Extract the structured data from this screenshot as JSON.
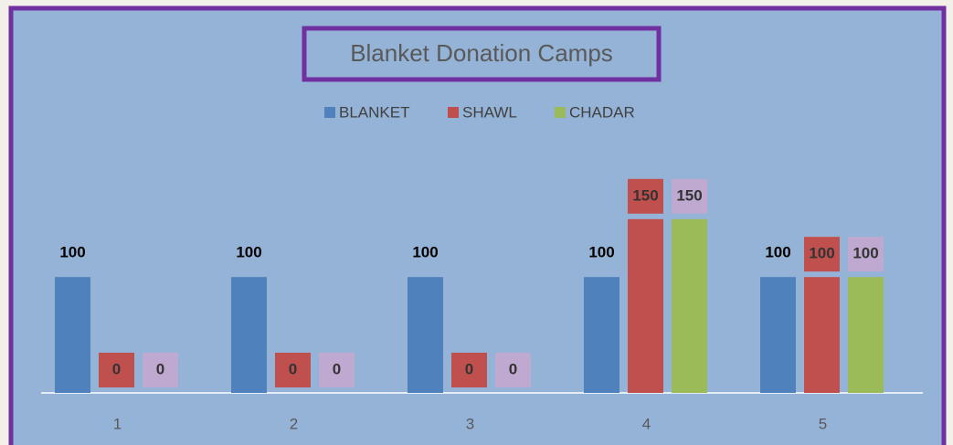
{
  "chart_data": {
    "type": "bar",
    "title": "Blanket Donation Camps",
    "categories": [
      "1",
      "2",
      "3",
      "4",
      "5"
    ],
    "series": [
      {
        "name": "BLANKET",
        "color": "#4f81bd",
        "values": [
          100,
          100,
          100,
          100,
          100
        ]
      },
      {
        "name": "SHAWL",
        "color": "#c0504d",
        "label_fill": "#c0504d",
        "values": [
          0,
          0,
          0,
          150,
          100
        ]
      },
      {
        "name": "CHADAR",
        "color": "#9bbb59",
        "label_fill": "#bfa9d0",
        "values": [
          0,
          0,
          0,
          150,
          100
        ]
      }
    ],
    "ylim": [
      0,
      250
    ],
    "legend": "top",
    "data_labels": true
  }
}
